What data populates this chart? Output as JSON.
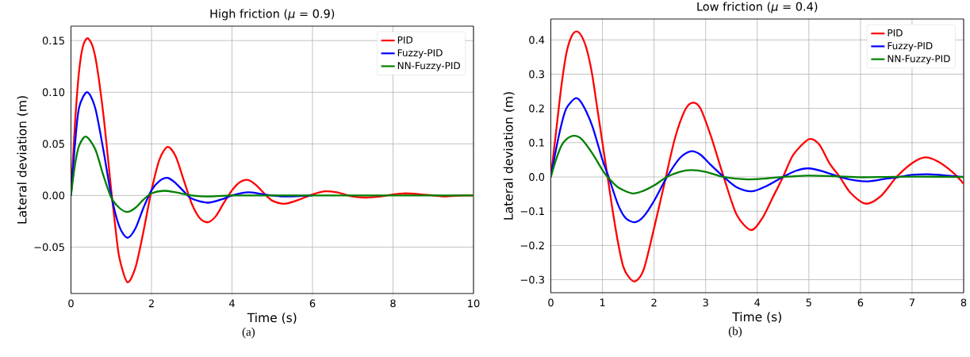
{
  "chart_data": [
    {
      "type": "line",
      "title": "High friction (*μ* = 0.9)",
      "xlabel": "Time (s)",
      "ylabel": "Lateral deviation (m)",
      "annotations": [
        "(a)"
      ],
      "xlim": [
        0,
        10
      ],
      "ylim": [
        -0.095,
        0.164
      ],
      "xticks": [
        0,
        2,
        4,
        6,
        8,
        10
      ],
      "yticks": [
        {
          "value": -0.05,
          "label": "−0.05"
        },
        {
          "value": 0,
          "label": "0.00"
        },
        {
          "value": 0.05,
          "label": "0.05"
        },
        {
          "value": 0.1,
          "label": "0.10"
        },
        {
          "value": 0.15,
          "label": "0.15"
        }
      ],
      "grid": true,
      "legend": "top right",
      "series": [
        {
          "name": "PID",
          "color": "#ff0000",
          "x": [
            0,
            0.1,
            0.2,
            0.3,
            0.43,
            0.6,
            0.8,
            1.0,
            1.1,
            1.2,
            1.4,
            1.6,
            1.8,
            2.0,
            2.2,
            2.4,
            2.6,
            2.8,
            3.0,
            3.2,
            3.4,
            3.6,
            3.8,
            4.0,
            4.2,
            4.4,
            4.6,
            4.8,
            5.0,
            5.3,
            5.6,
            6.0,
            6.3,
            6.6,
            7.0,
            7.3,
            7.7,
            8.0,
            8.3,
            8.7,
            9.0,
            9.3,
            9.7,
            10
          ],
          "values": [
            0,
            0.07,
            0.12,
            0.145,
            0.152,
            0.135,
            0.08,
            0.005,
            -0.03,
            -0.06,
            -0.084,
            -0.07,
            -0.035,
            0.005,
            0.035,
            0.047,
            0.038,
            0.015,
            -0.008,
            -0.022,
            -0.026,
            -0.02,
            -0.007,
            0.005,
            0.013,
            0.015,
            0.01,
            0.002,
            -0.005,
            -0.008,
            -0.005,
            0.001,
            0.004,
            0.003,
            -0.001,
            -0.002,
            -0.001,
            0.001,
            0.002,
            0.001,
            0,
            -0.001,
            0,
            0
          ]
        },
        {
          "name": "Fuzzy-PID",
          "color": "#0000ff",
          "x": [
            0,
            0.1,
            0.2,
            0.4,
            0.6,
            0.8,
            1.0,
            1.2,
            1.4,
            1.6,
            1.8,
            2.0,
            2.2,
            2.4,
            2.6,
            2.8,
            3.0,
            3.4,
            3.8,
            4.0,
            4.4,
            4.8,
            5.3,
            6.0
          ],
          "values": [
            0,
            0.05,
            0.085,
            0.1,
            0.085,
            0.045,
            0,
            -0.03,
            -0.041,
            -0.032,
            -0.012,
            0.005,
            0.014,
            0.017,
            0.012,
            0.004,
            -0.003,
            -0.007,
            -0.003,
            0,
            0.003,
            0.001,
            -0.001,
            0
          ]
        },
        {
          "name": "NN-Fuzzy-PID",
          "color": "#008000",
          "x": [
            0,
            0.1,
            0.2,
            0.37,
            0.6,
            0.8,
            1.0,
            1.2,
            1.4,
            1.6,
            1.8,
            2.0,
            2.3,
            2.6,
            3.0,
            3.4,
            4.0,
            5.0,
            6.0,
            7.0,
            8.0,
            9.0,
            10
          ],
          "values": [
            0,
            0.03,
            0.048,
            0.057,
            0.045,
            0.02,
            -0.002,
            -0.012,
            -0.016,
            -0.012,
            -0.004,
            0.002,
            0.0045,
            0.003,
            0,
            -0.001,
            0,
            0,
            0,
            0,
            0,
            0,
            0
          ]
        }
      ]
    },
    {
      "type": "line",
      "title": "Low friction (*μ* = 0.4)",
      "xlabel": "Time (s)",
      "ylabel": "Lateral deviation (m)",
      "annotations": [
        "(b)"
      ],
      "xlim": [
        0,
        8
      ],
      "ylim": [
        -0.338,
        0.461
      ],
      "xticks": [
        0,
        1,
        2,
        3,
        4,
        5,
        6,
        7,
        8
      ],
      "yticks": [
        {
          "value": -0.3,
          "label": "−0.3"
        },
        {
          "value": -0.2,
          "label": "−0.2"
        },
        {
          "value": -0.1,
          "label": "−0.1"
        },
        {
          "value": 0,
          "label": "0.0"
        },
        0.1,
        0.2,
        0.3,
        0.4
      ],
      "grid": true,
      "legend": "top right",
      "series": [
        {
          "name": "PID",
          "color": "#ff0000",
          "x": [
            0,
            0.1,
            0.2,
            0.3,
            0.4,
            0.5,
            0.6,
            0.7,
            0.8,
            0.9,
            1.0,
            1.1,
            1.2,
            1.3,
            1.4,
            1.5,
            1.63,
            1.8,
            2.0,
            2.2,
            2.4,
            2.6,
            2.75,
            2.9,
            3.1,
            3.35,
            3.6,
            3.88,
            4.1,
            4.3,
            4.5,
            4.7,
            5.0,
            5.2,
            5.4,
            5.6,
            5.8,
            6.1,
            6.4,
            6.7,
            7.0,
            7.25,
            7.5,
            7.8,
            8.0
          ],
          "values": [
            0,
            0.13,
            0.26,
            0.36,
            0.41,
            0.425,
            0.41,
            0.37,
            0.3,
            0.2,
            0.1,
            0,
            -0.1,
            -0.19,
            -0.26,
            -0.29,
            -0.305,
            -0.27,
            -0.15,
            -0.02,
            0.11,
            0.195,
            0.217,
            0.2,
            0.12,
            0,
            -0.11,
            -0.155,
            -0.12,
            -0.06,
            0,
            0.065,
            0.11,
            0.095,
            0.04,
            0,
            -0.045,
            -0.078,
            -0.055,
            0,
            0.04,
            0.057,
            0.045,
            0.012,
            -0.02
          ]
        },
        {
          "name": "Fuzzy-PID",
          "color": "#0000ff",
          "x": [
            0,
            0.1,
            0.2,
            0.3,
            0.48,
            0.6,
            0.8,
            1.0,
            1.12,
            1.3,
            1.45,
            1.63,
            1.8,
            2.0,
            2.25,
            2.5,
            2.72,
            2.9,
            3.1,
            3.35,
            3.6,
            3.9,
            4.2,
            4.5,
            4.75,
            5.0,
            5.3,
            5.6,
            5.9,
            6.15,
            6.5,
            6.75,
            7.0,
            7.3,
            7.6,
            8.0
          ],
          "values": [
            0,
            0.08,
            0.15,
            0.2,
            0.23,
            0.215,
            0.15,
            0.05,
            0,
            -0.08,
            -0.12,
            -0.132,
            -0.115,
            -0.07,
            0,
            0.055,
            0.075,
            0.065,
            0.035,
            0,
            -0.03,
            -0.042,
            -0.025,
            0,
            0.018,
            0.025,
            0.015,
            0,
            -0.01,
            -0.013,
            -0.005,
            0,
            0.006,
            0.008,
            0.005,
            0
          ]
        },
        {
          "name": "NN-Fuzzy-PID",
          "color": "#008000",
          "x": [
            0,
            0.1,
            0.2,
            0.3,
            0.45,
            0.6,
            0.8,
            1.0,
            1.1,
            1.3,
            1.58,
            1.8,
            2.0,
            2.25,
            2.5,
            2.72,
            3.0,
            3.35,
            3.8,
            4.2,
            4.5,
            5.0,
            5.5,
            6.0,
            6.5,
            7.0,
            8.0
          ],
          "values": [
            0,
            0.05,
            0.09,
            0.11,
            0.12,
            0.11,
            0.07,
            0.02,
            0,
            -0.03,
            -0.048,
            -0.04,
            -0.025,
            0,
            0.015,
            0.02,
            0.015,
            0,
            -0.007,
            -0.004,
            0,
            0.004,
            0.002,
            -0.001,
            0,
            0.001,
            0
          ]
        }
      ]
    }
  ]
}
